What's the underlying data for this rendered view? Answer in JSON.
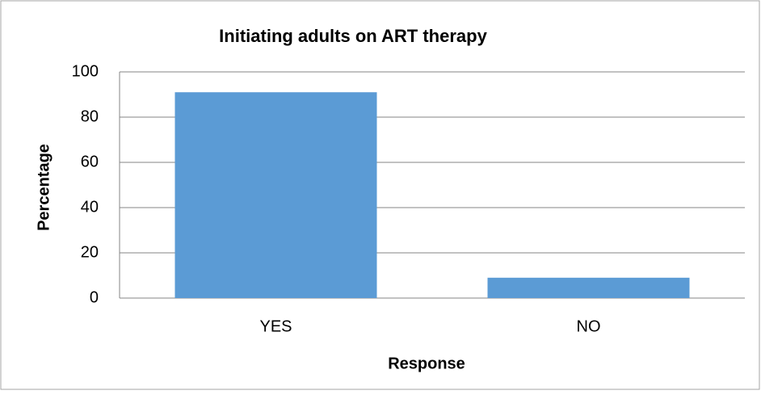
{
  "chart_data": {
    "type": "bar",
    "title": "Initiating adults on ART therapy",
    "x_label": "Response",
    "y_label": "Percentage",
    "categories": [
      "YES",
      "NO"
    ],
    "values": [
      91,
      9
    ],
    "color": "#5b9bd5",
    "ylim": [
      0,
      100
    ],
    "yticks": [
      0,
      20,
      40,
      60,
      80,
      100
    ],
    "grid": true
  }
}
